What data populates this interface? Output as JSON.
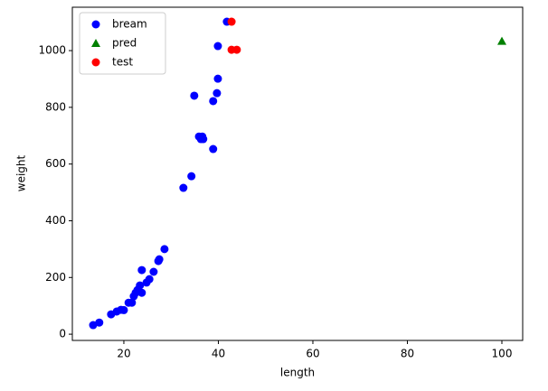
{
  "chart_data": {
    "type": "scatter",
    "xlabel": "length",
    "ylabel": "weight",
    "xlim": [
      9.1,
      104.4
    ],
    "ylim": [
      -22,
      1153
    ],
    "xticks": [
      20,
      40,
      60,
      80,
      100
    ],
    "yticks": [
      0,
      200,
      400,
      600,
      800,
      1000
    ],
    "legend": "upper left",
    "series": [
      {
        "name": "bream",
        "color": "#0000ff",
        "marker": "circle",
        "x": [
          13.5,
          14.8,
          17.3,
          18.5,
          19.4,
          20,
          21,
          21.7,
          22.1,
          22.5,
          22.9,
          23.4,
          23.8,
          23.8,
          24.8,
          25.4,
          26.3,
          27.3,
          27.5,
          28.6,
          32.6,
          34.3,
          34.9,
          35.9,
          36.3,
          36.6,
          36.8,
          38.9,
          38.9,
          39.7,
          39.9,
          39.9,
          41.8
        ],
        "y": [
          32,
          41,
          70,
          80,
          86,
          85,
          111,
          111,
          134,
          146,
          156,
          172,
          146,
          226,
          182,
          194,
          220,
          258,
          264,
          300,
          516,
          557,
          841,
          697,
          688,
          697,
          688,
          653,
          822,
          850,
          901,
          1016,
          1102
        ]
      },
      {
        "name": "pred",
        "color": "#008000",
        "marker": "triangle",
        "x": [
          100
        ],
        "y": [
          1033
        ]
      },
      {
        "name": "test",
        "color": "#ff0000",
        "marker": "circle",
        "x": [
          42.8,
          42.8,
          43.9
        ],
        "y": [
          1102,
          1003,
          1003
        ]
      }
    ]
  }
}
